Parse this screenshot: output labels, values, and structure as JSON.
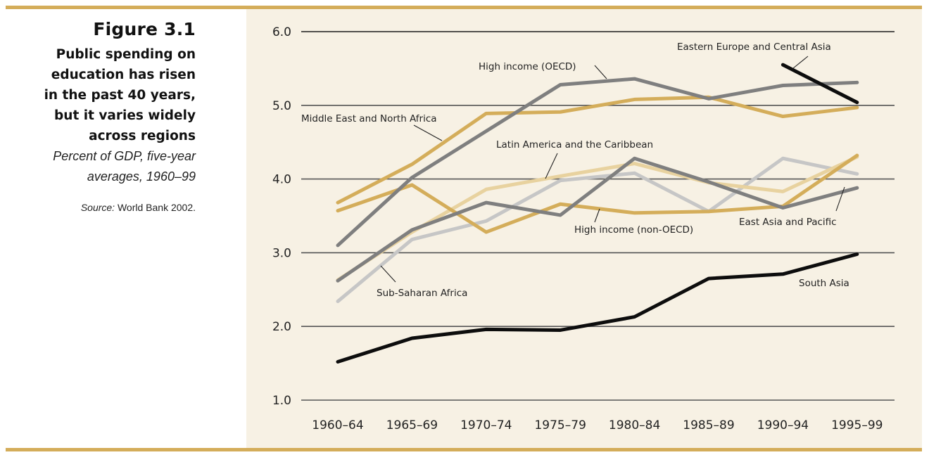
{
  "figure": {
    "number": "Figure 3.1",
    "headline": [
      "Public spending on",
      "education has risen",
      "in the past 40 years,",
      "but it varies widely",
      "across regions"
    ],
    "subtitle": [
      "Percent of GDP, five-year",
      "averages, 1960–99"
    ],
    "source_label": "Source:",
    "source_text": " World Bank 2002."
  },
  "colors": {
    "rule": "#d4ad5a",
    "panel": "#f7f1e4",
    "black": "#0d0d0d",
    "dark_gray": "#7f7f7f",
    "light_gray": "#c6c6c6",
    "gold": "#d4ad5a",
    "light_gold": "#e8d29f"
  },
  "chart_data": {
    "type": "line",
    "title": "Public spending on education has risen in the past 40 years, but it varies widely across regions",
    "subtitle": "Percent of GDP, five-year averages, 1960–99",
    "xlabel": "",
    "ylabel": "Percent of GDP",
    "categories": [
      "1960–64",
      "1965–69",
      "1970–74",
      "1975–79",
      "1980–84",
      "1985–89",
      "1990–94",
      "1995–99"
    ],
    "yticks": [
      "1.0",
      "2.0",
      "3.0",
      "4.0",
      "5.0",
      "6.0"
    ],
    "ylim": [
      1.0,
      6.0
    ],
    "grid": true,
    "legend": "direct-labels",
    "series": [
      {
        "name": "Sub-Saharan Africa",
        "color": "#c6c6c6",
        "values": [
          2.34,
          3.18,
          3.43,
          3.98,
          4.08,
          3.56,
          4.28,
          4.07
        ]
      },
      {
        "name": "Latin America and the Caribbean",
        "color": "#e8d29f",
        "values": [
          2.63,
          3.28,
          3.86,
          4.04,
          4.21,
          3.95,
          3.83,
          4.3
        ]
      },
      {
        "name": "High income (non-OECD)",
        "color": "#d4ad5a",
        "values": [
          3.57,
          3.92,
          3.28,
          3.66,
          3.54,
          3.56,
          3.63,
          4.32
        ]
      },
      {
        "name": "Middle East and North Africa",
        "color": "#d4ad5a",
        "values": [
          3.68,
          4.2,
          4.89,
          4.91,
          5.08,
          5.11,
          4.85,
          4.97
        ]
      },
      {
        "name": "East Asia and Pacific",
        "color": "#7f7f7f",
        "values": [
          2.62,
          3.31,
          3.68,
          3.51,
          4.28,
          3.96,
          3.61,
          3.88
        ]
      },
      {
        "name": "High income (OECD)",
        "color": "#7f7f7f",
        "values": [
          3.1,
          4.02,
          4.65,
          5.28,
          5.36,
          5.09,
          5.27,
          5.31
        ]
      },
      {
        "name": "South Asia",
        "color": "#0d0d0d",
        "values": [
          1.52,
          1.84,
          1.96,
          1.95,
          2.13,
          2.65,
          2.71,
          2.98
        ]
      },
      {
        "name": "Eastern Europe and Central Asia",
        "color": "#0d0d0d",
        "values": [
          null,
          null,
          null,
          null,
          null,
          null,
          5.55,
          5.04
        ]
      }
    ],
    "annotations": [
      {
        "text": "High income (OECD)",
        "series": "High income (OECD)"
      },
      {
        "text": "Eastern Europe and Central Asia",
        "series": "Eastern Europe and Central Asia"
      },
      {
        "text": "Middle East and North Africa",
        "series": "Middle East and North Africa"
      },
      {
        "text": "Latin America and the Caribbean",
        "series": "Latin America and the Caribbean"
      },
      {
        "text": "High income (non-OECD)",
        "series": "High income (non-OECD)"
      },
      {
        "text": "East Asia and Pacific",
        "series": "East Asia and Pacific"
      },
      {
        "text": "Sub-Saharan Africa",
        "series": "Sub-Saharan Africa"
      },
      {
        "text": "South Asia",
        "series": "South Asia"
      }
    ]
  }
}
